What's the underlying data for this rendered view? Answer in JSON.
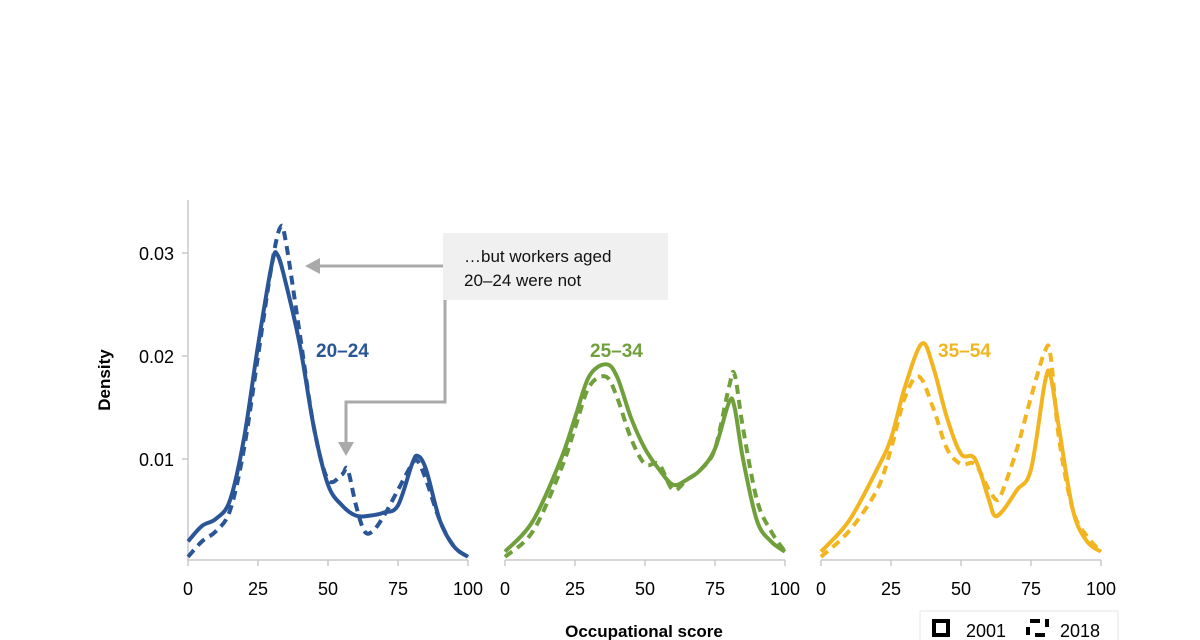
{
  "chart_data": {
    "type": "line",
    "ylabel": "Density",
    "xlabel": "Occupational score",
    "yticks": [
      "0.01",
      "0.02",
      "0.03"
    ],
    "ytick_values": [
      0.01,
      0.02,
      0.03
    ],
    "ylim": [
      0,
      0.035
    ],
    "xlim": [
      0,
      100
    ],
    "xticks": [
      "0",
      "25",
      "50",
      "75",
      "100"
    ],
    "xtick_values": [
      0,
      25,
      50,
      75,
      100
    ],
    "legend": {
      "placement": "bottom-right",
      "entries": [
        {
          "label": "2001",
          "style": "solid"
        },
        {
          "label": "2018",
          "style": "dashed"
        }
      ]
    },
    "annotation": {
      "line1": "…but workers aged",
      "line2": "20–24 were not"
    },
    "panels": [
      {
        "label": "20–24",
        "color": "#2a5597",
        "series": [
          {
            "name": "2001",
            "x": [
              0,
              5,
              10,
              15,
              20,
              25,
              30,
              32,
              35,
              40,
              45,
              50,
              55,
              60,
              65,
              70,
              75,
              80,
              82,
              85,
              90,
              95,
              100
            ],
            "y": [
              0.002,
              0.0035,
              0.0042,
              0.006,
              0.012,
              0.021,
              0.029,
              0.0298,
              0.027,
              0.021,
              0.013,
              0.0075,
              0.0055,
              0.0045,
              0.0045,
              0.0048,
              0.0055,
              0.0095,
              0.0103,
              0.009,
              0.004,
              0.0015,
              0.0005
            ]
          },
          {
            "name": "2018",
            "x": [
              0,
              5,
              10,
              15,
              20,
              25,
              30,
              33,
              35,
              40,
              45,
              50,
              55,
              57,
              60,
              63,
              66,
              70,
              75,
              80,
              82,
              85,
              90,
              95,
              100
            ],
            "y": [
              0.0005,
              0.002,
              0.003,
              0.005,
              0.011,
              0.02,
              0.029,
              0.0325,
              0.031,
              0.022,
              0.013,
              0.008,
              0.0085,
              0.009,
              0.0055,
              0.003,
              0.003,
              0.0045,
              0.007,
              0.0095,
              0.0098,
              0.008,
              0.004,
              0.0015,
              0.0005
            ]
          }
        ]
      },
      {
        "label": "25–34",
        "color": "#70a03c",
        "series": [
          {
            "name": "2001",
            "x": [
              0,
              10,
              20,
              25,
              30,
              36,
              40,
              45,
              50,
              55,
              60,
              65,
              70,
              75,
              80,
              82,
              85,
              90,
              95,
              100
            ],
            "y": [
              0.001,
              0.004,
              0.01,
              0.014,
              0.018,
              0.0192,
              0.018,
              0.014,
              0.011,
              0.009,
              0.0075,
              0.008,
              0.009,
              0.011,
              0.0155,
              0.015,
              0.01,
              0.004,
              0.002,
              0.001
            ]
          },
          {
            "name": "2018",
            "x": [
              0,
              10,
              20,
              25,
              30,
              36,
              40,
              45,
              50,
              55,
              60,
              65,
              70,
              75,
              80,
              82,
              85,
              90,
              95,
              100
            ],
            "y": [
              0.0005,
              0.003,
              0.009,
              0.013,
              0.017,
              0.018,
              0.016,
              0.012,
              0.0095,
              0.0095,
              0.007,
              0.008,
              0.009,
              0.011,
              0.017,
              0.0182,
              0.013,
              0.006,
              0.003,
              0.001
            ]
          }
        ]
      },
      {
        "label": "35–54",
        "color": "#f2b51f",
        "series": [
          {
            "name": "2001",
            "x": [
              0,
              10,
              20,
              25,
              30,
              36,
              40,
              45,
              50,
              55,
              60,
              62,
              65,
              70,
              75,
              80,
              82,
              85,
              90,
              95,
              100
            ],
            "y": [
              0.001,
              0.004,
              0.009,
              0.012,
              0.017,
              0.0212,
              0.019,
              0.014,
              0.0105,
              0.01,
              0.006,
              0.0045,
              0.005,
              0.007,
              0.009,
              0.0175,
              0.018,
              0.013,
              0.005,
              0.002,
              0.001
            ]
          },
          {
            "name": "2018",
            "x": [
              0,
              10,
              20,
              25,
              30,
              35,
              40,
              45,
              50,
              55,
              60,
              63,
              65,
              70,
              75,
              80,
              82,
              85,
              90,
              95,
              100
            ],
            "y": [
              0.0005,
              0.003,
              0.007,
              0.011,
              0.016,
              0.018,
              0.015,
              0.011,
              0.0095,
              0.0095,
              0.007,
              0.006,
              0.007,
              0.011,
              0.016,
              0.0205,
              0.02,
              0.012,
              0.005,
              0.0025,
              0.001
            ]
          }
        ]
      }
    ]
  }
}
